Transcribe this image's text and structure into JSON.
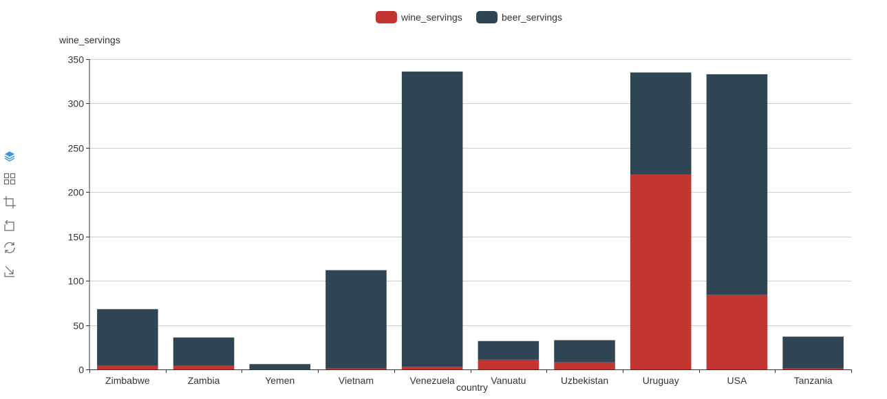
{
  "chart_data": {
    "type": "bar",
    "stacked": true,
    "categories": [
      "Zimbabwe",
      "Zambia",
      "Yemen",
      "Vietnam",
      "Venezuela",
      "Vanuatu",
      "Uzbekistan",
      "Uruguay",
      "USA",
      "Tanzania"
    ],
    "series": [
      {
        "name": "wine_servings",
        "color": "#c23531",
        "values": [
          4,
          4,
          0,
          1,
          3,
          11,
          8,
          220,
          84,
          1
        ]
      },
      {
        "name": "beer_servings",
        "color": "#2f4554",
        "values": [
          64,
          32,
          6,
          111,
          333,
          21,
          25,
          115,
          249,
          36
        ]
      }
    ],
    "xlabel": "country",
    "ylabel": "wine_servings",
    "ylim": [
      0,
      350
    ],
    "yticks": [
      "0",
      "50",
      "100",
      "150",
      "200",
      "250",
      "300",
      "350"
    ],
    "grid": true,
    "legend": "top-center"
  },
  "toolbox": {
    "icons": [
      "stack-icon",
      "tiled-icon",
      "crop-icon",
      "undo-icon",
      "refresh-icon",
      "download-icon"
    ],
    "active_color": "#3a9ad9",
    "color": "#666666"
  }
}
